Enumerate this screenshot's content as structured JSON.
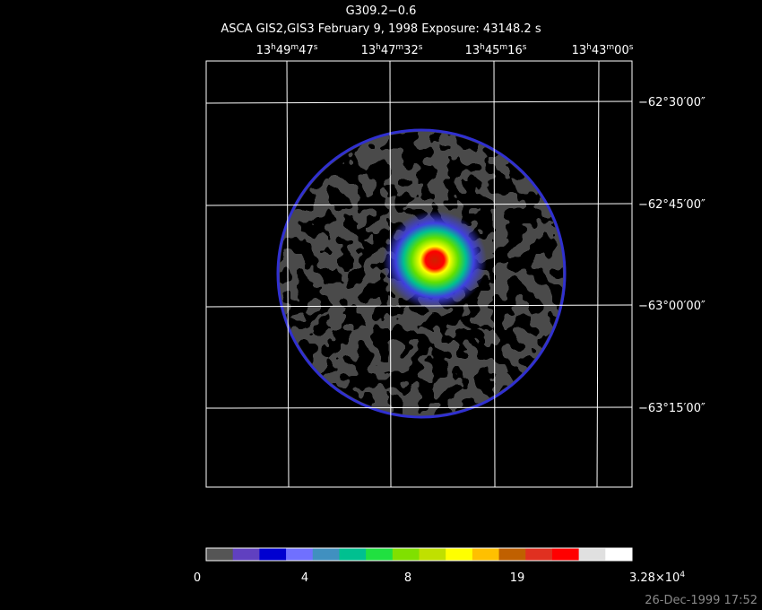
{
  "header": {
    "title": "G309.2−0.6",
    "subtitle": "ASCA GIS2,GIS3 February 9, 1998 Exposure: 43148.2 s"
  },
  "ra_labels": [
    [
      "13",
      "h",
      "49",
      "m",
      "47",
      "s"
    ],
    [
      "13",
      "h",
      "47",
      "m",
      "32",
      "s"
    ],
    [
      "13",
      "h",
      "45",
      "m",
      "16",
      "s"
    ],
    [
      "13",
      "h",
      "43",
      "m",
      "00",
      "s"
    ]
  ],
  "dec_labels": [
    "−62°30′00″",
    "−62°45′00″",
    "−63°00′00″",
    "−63°15′00″"
  ],
  "colorbar": {
    "colors": [
      "#555555",
      "#6040c0",
      "#0000d0",
      "#7070ff",
      "#4090c0",
      "#00c090",
      "#20e040",
      "#80e000",
      "#c0e000",
      "#ffff00",
      "#ffc000",
      "#c06000",
      "#e03020",
      "#ff0000",
      "#e0e0e0",
      "#ffffff"
    ],
    "labels": [
      [
        "0"
      ],
      [
        "4"
      ],
      [
        "8"
      ],
      [
        "19"
      ],
      [
        "3.28×10",
        "4"
      ]
    ]
  },
  "footer": "26-Dec-1999 17:52"
}
